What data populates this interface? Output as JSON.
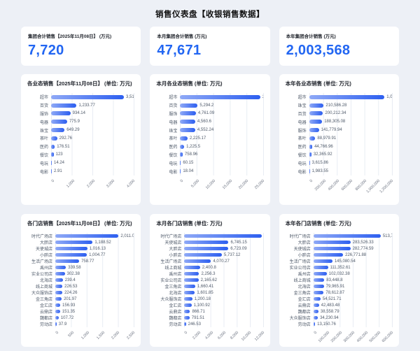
{
  "page": {
    "title": "销售仪表盘【收银销售数据】"
  },
  "colors": {
    "accent": "#2266f2",
    "bar_gradient_start": "#8fa9f6",
    "bar_gradient_end": "#2d5ff0",
    "grid_line": "#e8ecf3",
    "card_background": "#ffffff",
    "page_background": "#edf0f6"
  },
  "cards": [
    {
      "label": "集团合计销售【2025年11月08日】 (万元)",
      "value": "7,720"
    },
    {
      "label": "本月集团合计销售 (万元)",
      "value": "47,671"
    },
    {
      "label": "本年集团合计销售 (万元)",
      "value": "2,003,568"
    }
  ],
  "chart_data": [
    {
      "type": "bar",
      "orientation": "horizontal",
      "title": "各业态销售【2025年11月08日】 (单位: 万元)",
      "categories": [
        "超市",
        "百货",
        "服饰",
        "电器",
        "珠宝",
        "茶叶",
        "医药",
        "餐饮",
        "电玩",
        "电影"
      ],
      "values": [
        3517.23,
        1233.77,
        934.14,
        775.9,
        649.29,
        292.76,
        176.51,
        123,
        14.24,
        2.91
      ],
      "labels": [
        "3,517.23",
        "1,233.77",
        "934.14",
        "775.9",
        "649.29",
        "292.76",
        "176.51",
        "123",
        "14.24",
        "2.91"
      ],
      "xmax": 4000,
      "ticks": [
        "0",
        "1,000",
        "2,000",
        "3,000",
        "4,000"
      ]
    },
    {
      "type": "bar",
      "orientation": "horizontal",
      "title": "本月各业态销售 (单位: 万元)",
      "categories": [
        "超市",
        "百货",
        "服饰",
        "电器",
        "珠宝",
        "茶叶",
        "医药",
        "餐饮",
        "电玩",
        "电影"
      ],
      "values": [
        24213,
        5294.2,
        4761.09,
        4560.6,
        4552.24,
        2225.17,
        1225.5,
        758.96,
        60.15,
        18.04
      ],
      "labels": [
        "24,213.",
        "5,294.2",
        "4,761.09",
        "4,560.6",
        "4,552.24",
        "2,225.17",
        "1,225.5",
        "758.96",
        "60.15",
        "18.04"
      ],
      "xmax": 25000,
      "ticks": [
        "0",
        "5,000",
        "10,000",
        "15,000",
        "20,000",
        "25,000"
      ]
    },
    {
      "type": "bar",
      "orientation": "horizontal",
      "title": "本年各业态销售 (单位: 万元)",
      "categories": [
        "超市",
        "珠宝",
        "百货",
        "电器",
        "服饰",
        "茶叶",
        "医药",
        "餐饮",
        "电玩",
        "电影"
      ],
      "values": [
        1090972,
        210586.28,
        200212.34,
        188305.08,
        141779.94,
        88979.91,
        44766.96,
        32365.92,
        3615.86,
        1983.55
      ],
      "labels": [
        "1,090,972.",
        "210,586.28",
        "200,212.34",
        "188,305.08",
        "141,779.94",
        "88,979.91",
        "44,766.96",
        "32,365.92",
        "3,615.86",
        "1,983.55"
      ],
      "xmax": 1200000,
      "ticks": [
        "0",
        "200,000",
        "400,000",
        "600,000",
        "800,000",
        "1,000,000",
        "1,200,000"
      ]
    },
    {
      "type": "bar",
      "orientation": "horizontal",
      "title": "各门店销售【2025年11月08日】 (单位: 万元)",
      "categories": [
        "时代广场店",
        "大胖店",
        "天使城店",
        "小胖店",
        "生活广场店",
        "禹州店",
        "实业公司店",
        "北海店",
        "线上商城",
        "大众服饰店",
        "金三角店",
        "金汇店",
        "云鼎店",
        "魏都店",
        "劳动店"
      ],
      "values": [
        2011.03,
        1188.52,
        1016.13,
        1004.77,
        758.77,
        339.58,
        302.38,
        239.4,
        226.53,
        224.26,
        201.97,
        156.93,
        151.35,
        107.72,
        37.9
      ],
      "labels": [
        "2,011.03",
        "1,188.52",
        "1,016.13",
        "1,004.77",
        "758.77",
        "339.58",
        "302.38",
        "239.4",
        "226.53",
        "224.26",
        "201.97",
        "156.93",
        "151.35",
        "107.72",
        "37.9"
      ],
      "xmax": 2500,
      "ticks": [
        "0",
        "500",
        "1,000",
        "1,500",
        "2,000",
        "2,500"
      ]
    },
    {
      "type": "bar",
      "orientation": "horizontal",
      "title": "本月各门店销售 (单位: 万元)",
      "categories": [
        "时代广场店",
        "天使城店",
        "大胖店",
        "小胖店",
        "生活广场店",
        "线上商城",
        "禹州店",
        "实业公司店",
        "金三角店",
        "北海店",
        "大众服饰店",
        "金汇店",
        "云鼎店",
        "魏都店",
        "劳动店"
      ],
      "values": [
        11805,
        6745.15,
        6723.09,
        5737.12,
        4070.27,
        2400.8,
        2256.3,
        2165.62,
        1660.41,
        1601.85,
        1200.18,
        1100.92,
        866.71,
        791.51,
        246.53
      ],
      "labels": [
        "11,805",
        "6,745.15",
        "6,723.09",
        "5,737.12",
        "4,070.27",
        "2,400.8",
        "2,256.3",
        "2,165.62",
        "1,660.41",
        "1,601.85",
        "1,200.18",
        "1,100.92",
        "866.71",
        "791.51",
        "246.53"
      ],
      "xmax": 12000,
      "ticks": [
        "0",
        "2,000",
        "4,000",
        "6,000",
        "8,000",
        "10,000",
        "12,000"
      ]
    },
    {
      "type": "bar",
      "orientation": "horizontal",
      "title": "本年各门店销售 (单位: 万元)",
      "categories": [
        "时代广场店",
        "大胖店",
        "天使城店",
        "小胖店",
        "生活广场店",
        "实业公司店",
        "禹州店",
        "线上商城",
        "北海店",
        "金三角店",
        "金汇店",
        "云鼎店",
        "魏都店",
        "大众服饰店",
        "劳动店"
      ],
      "values": [
        513780.29,
        283526.33,
        282774.59,
        226771.88,
        145080.54,
        111352.61,
        102032.38,
        83448.8,
        79965.91,
        78612.87,
        54521.71,
        42483.48,
        38558.79,
        34230.94,
        13150.76
      ],
      "labels": [
        "513,780.29",
        "283,526.33",
        "282,774.59",
        "226,771.88",
        "145,080.54",
        "111,352.61",
        "102,032.38",
        "83,448.8",
        "79,965.91",
        "78,612.87",
        "54,521.71",
        "42,483.48",
        "38,558.79",
        "34,230.94",
        "13,150.76"
      ],
      "xmax": 600000,
      "ticks": [
        "0",
        "100,000",
        "200,000",
        "300,000",
        "400,000",
        "500,000",
        "600,000"
      ]
    }
  ]
}
